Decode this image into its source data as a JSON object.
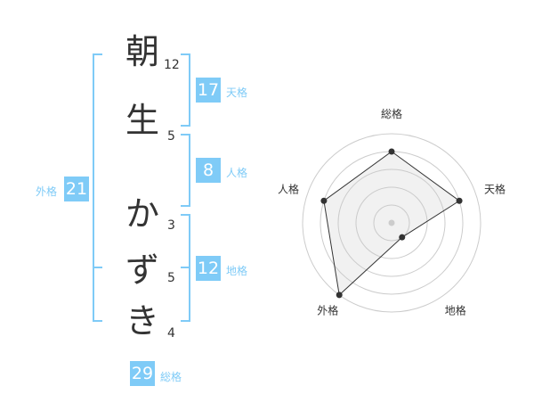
{
  "name": {
    "chars": [
      {
        "char": "朝",
        "strokes": "12"
      },
      {
        "char": "生",
        "strokes": "5"
      },
      {
        "char": "か",
        "strokes": "3"
      },
      {
        "char": "ず",
        "strokes": "5"
      },
      {
        "char": "き",
        "strokes": "4"
      }
    ]
  },
  "fortunes": {
    "tenkaku": {
      "label": "天格",
      "value": "17"
    },
    "jinkaku": {
      "label": "人格",
      "value": "8"
    },
    "chikaku": {
      "label": "地格",
      "value": "12"
    },
    "gaikaku": {
      "label": "外格",
      "value": "21"
    },
    "soukaku": {
      "label": "総格",
      "value": "29"
    }
  },
  "colors": {
    "accent": "#7fcbf7",
    "text": "#333333"
  },
  "chart_data": {
    "type": "radar",
    "axes": [
      "総格",
      "天格",
      "地格",
      "外格",
      "人格"
    ],
    "values": [
      4,
      4,
      1,
      5,
      4
    ],
    "range": [
      0,
      5
    ],
    "grid": true
  }
}
